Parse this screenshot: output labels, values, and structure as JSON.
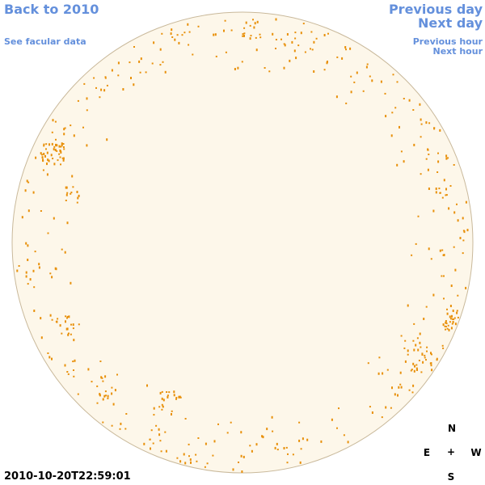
{
  "nav_left": {
    "back": "Back to 2010",
    "facular": "See facular data"
  },
  "nav_right": {
    "previous_day": "Previous day",
    "next_day": "Next day",
    "previous_hour": "Previous hour",
    "next_hour": "Next hour"
  },
  "timestamp": "2010-10-20T22:59:01",
  "compass": {
    "north": "N",
    "east": "E",
    "center": "+",
    "west": "W",
    "south": "S"
  }
}
